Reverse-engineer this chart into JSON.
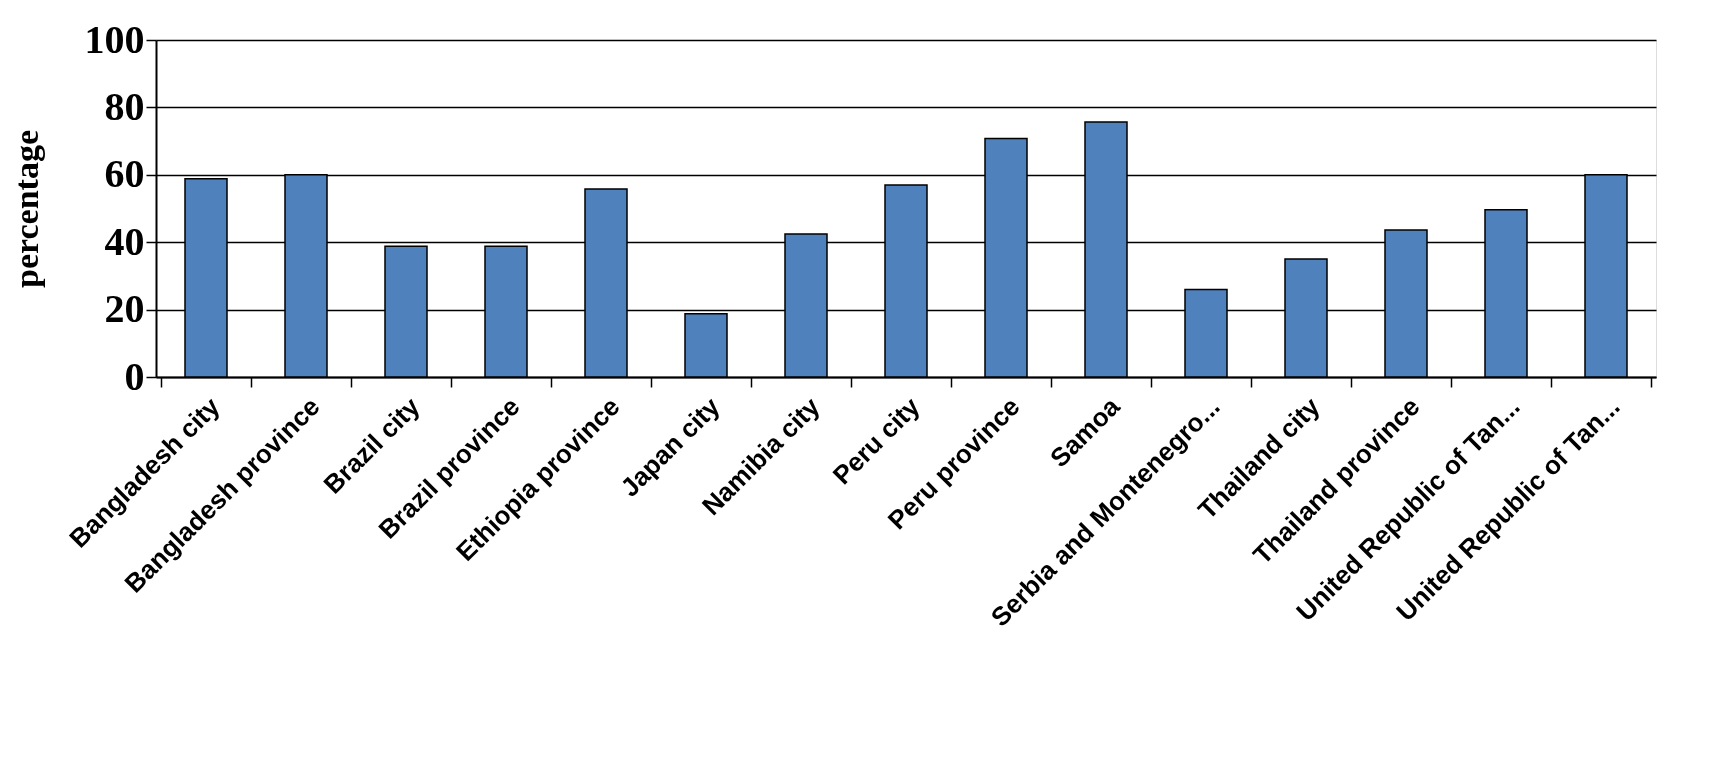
{
  "chart_data": {
    "type": "bar",
    "ylabel": "percentage",
    "categories": [
      "Bangladesh city",
      "Bangladesh province",
      "Brazil city",
      "Brazil province",
      "Ethiopia province",
      "Japan city",
      "Namibia city",
      "Peru city",
      "Peru province",
      "Samoa",
      "Serbia and Montenegro...",
      "Thailand city",
      "Thailand province",
      "United Republic of Tan...",
      "United Republic of Tan..."
    ],
    "values": [
      58.8,
      60,
      38.8,
      38.8,
      55.8,
      18.8,
      42.4,
      57,
      70.8,
      75.7,
      26,
      35,
      43.6,
      49.6,
      60
    ],
    "color": "#4f81bd",
    "ylim": [
      0,
      100
    ],
    "yticks": [
      0,
      20,
      40,
      60,
      80,
      100
    ],
    "grid": "y"
  }
}
